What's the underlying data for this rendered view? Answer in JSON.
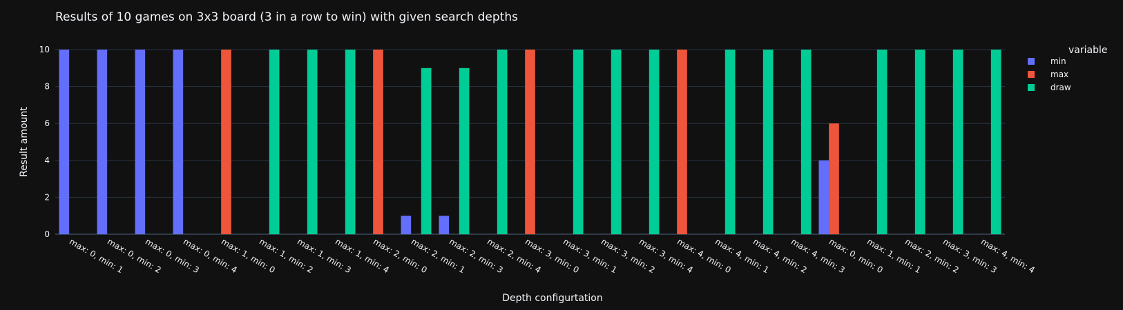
{
  "chart_data": {
    "type": "bar",
    "title": "Results of 10 games on 3x3 board (3 in a row to win) with given search depths",
    "xlabel": "Depth configurtation",
    "ylabel": "Result amount",
    "ylim": [
      0,
      10
    ],
    "yticks": [
      0,
      2,
      4,
      6,
      8,
      10
    ],
    "grid": true,
    "legend": {
      "title": "variable",
      "placement": "top-right"
    },
    "categories": [
      "max: 0, min: 1",
      "max: 0, min: 2",
      "max: 0, min: 3",
      "max: 0, min: 4",
      "max: 1, min: 0",
      "max: 1, min: 2",
      "max: 1, min: 3",
      "max: 1, min: 4",
      "max: 2, min: 0",
      "max: 2, min: 1",
      "max: 2, min: 3",
      "max: 2, min: 4",
      "max: 3, min: 0",
      "max: 3, min: 1",
      "max: 3, min: 2",
      "max: 3, min: 4",
      "max: 4, min: 0",
      "max: 4, min: 1",
      "max: 4, min: 2",
      "max: 4, min: 3",
      "max: 0, min: 0",
      "max: 1, min: 1",
      "max: 2, min: 2",
      "max: 3, min: 3",
      "max: 4, min: 4"
    ],
    "series": [
      {
        "name": "min",
        "color": "#636efa",
        "values": [
          10,
          10,
          10,
          10,
          0,
          0,
          0,
          0,
          0,
          1,
          1,
          0,
          0,
          0,
          0,
          0,
          0,
          0,
          0,
          0,
          4,
          0,
          0,
          0,
          0
        ]
      },
      {
        "name": "max",
        "color": "#ef553b",
        "values": [
          0,
          0,
          0,
          0,
          10,
          0,
          0,
          0,
          10,
          0,
          0,
          0,
          10,
          0,
          0,
          0,
          10,
          0,
          0,
          0,
          6,
          0,
          0,
          0,
          0
        ]
      },
      {
        "name": "draw",
        "color": "#00cc96",
        "values": [
          0,
          0,
          0,
          0,
          0,
          10,
          10,
          10,
          0,
          9,
          9,
          10,
          0,
          10,
          10,
          10,
          0,
          10,
          10,
          10,
          0,
          10,
          10,
          10,
          10
        ]
      }
    ]
  }
}
